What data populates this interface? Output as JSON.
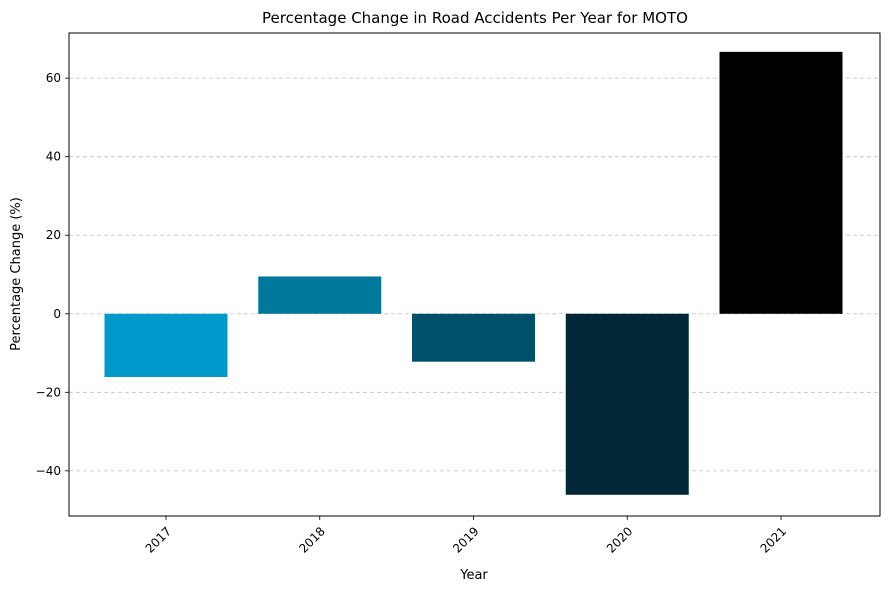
{
  "chart_data": {
    "type": "bar",
    "title": "Percentage Change in Road Accidents Per Year for MOTO",
    "xlabel": "Year",
    "ylabel": "Percentage Change (%)",
    "categories": [
      "2017",
      "2018",
      "2019",
      "2020",
      "2021"
    ],
    "values": [
      -16.1,
      9.5,
      -12.2,
      -46.1,
      66.7
    ],
    "colors": [
      "#0099cc",
      "#00789c",
      "#004f6b",
      "#022838",
      "#000000"
    ],
    "ylim": [
      -51.5,
      71.5
    ],
    "yticks": [
      -40,
      -20,
      0,
      20,
      40,
      60
    ],
    "ytick_labels": [
      "−40",
      "−20",
      "0",
      "20",
      "40",
      "60"
    ],
    "grid": "horizontal-dashed",
    "legend": "none"
  }
}
